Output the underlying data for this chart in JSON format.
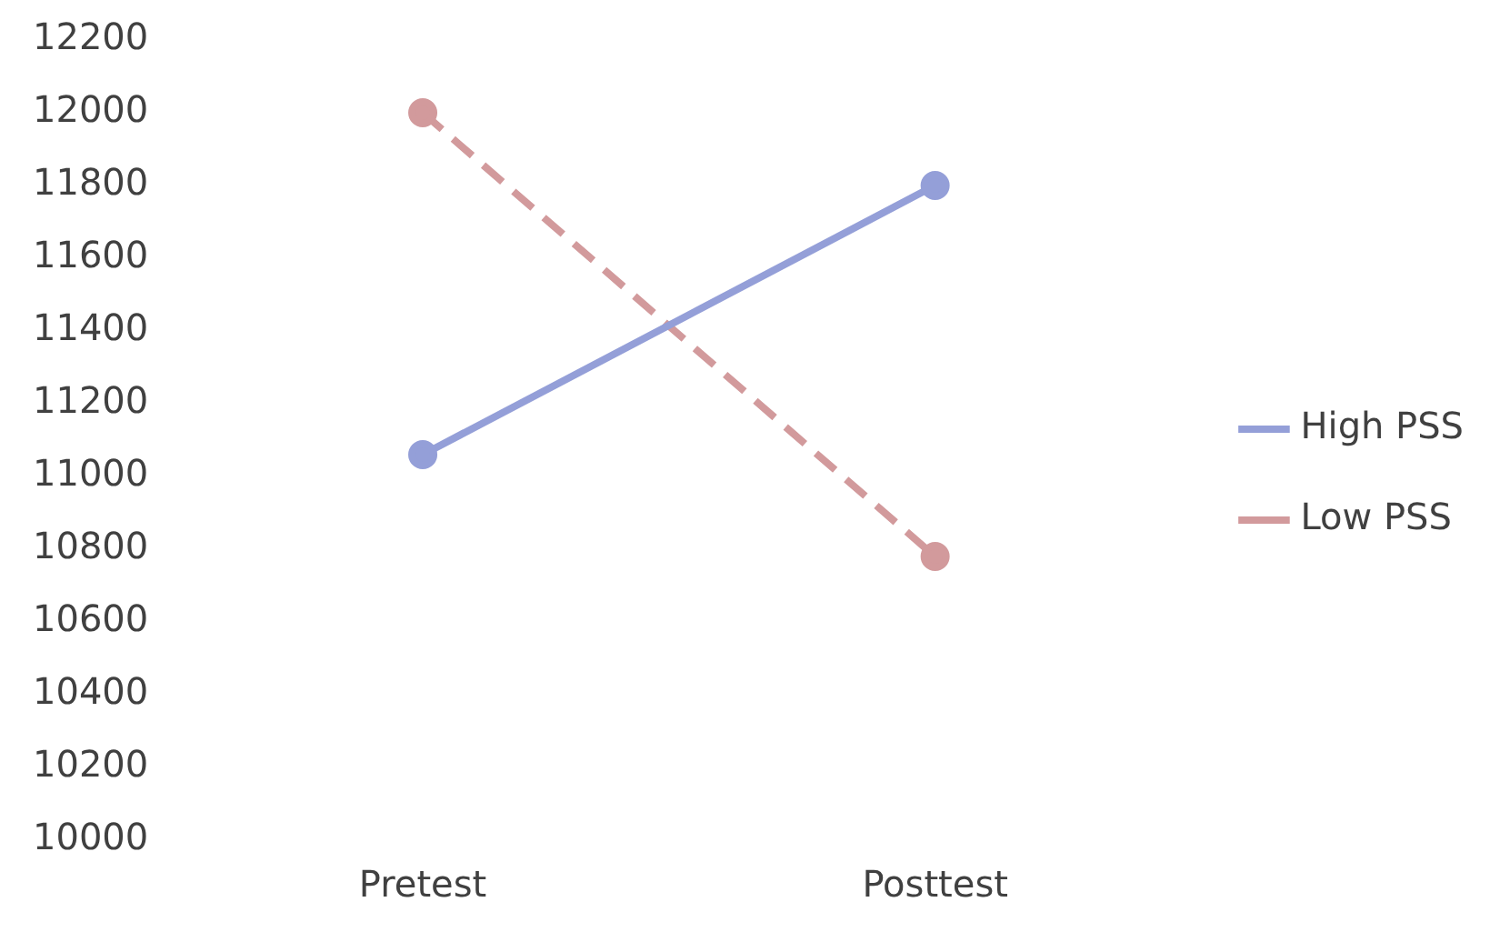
{
  "chart_data": {
    "type": "line",
    "categories": [
      "Pretest",
      "Posttest"
    ],
    "series": [
      {
        "name": "High PSS",
        "color": "#949fd8",
        "values": [
          11060,
          11800
        ],
        "line_style": "solid"
      },
      {
        "name": "Low PSS",
        "color": "#d29a9c",
        "values": [
          12000,
          10780
        ],
        "line_style": "dashed"
      }
    ],
    "ylim": [
      10000,
      12200
    ],
    "yticks": [
      10000,
      10200,
      10400,
      10600,
      10800,
      11000,
      11200,
      11400,
      11600,
      11800,
      12000,
      12200
    ],
    "grid": false,
    "legend": "right",
    "marker": "circle"
  }
}
